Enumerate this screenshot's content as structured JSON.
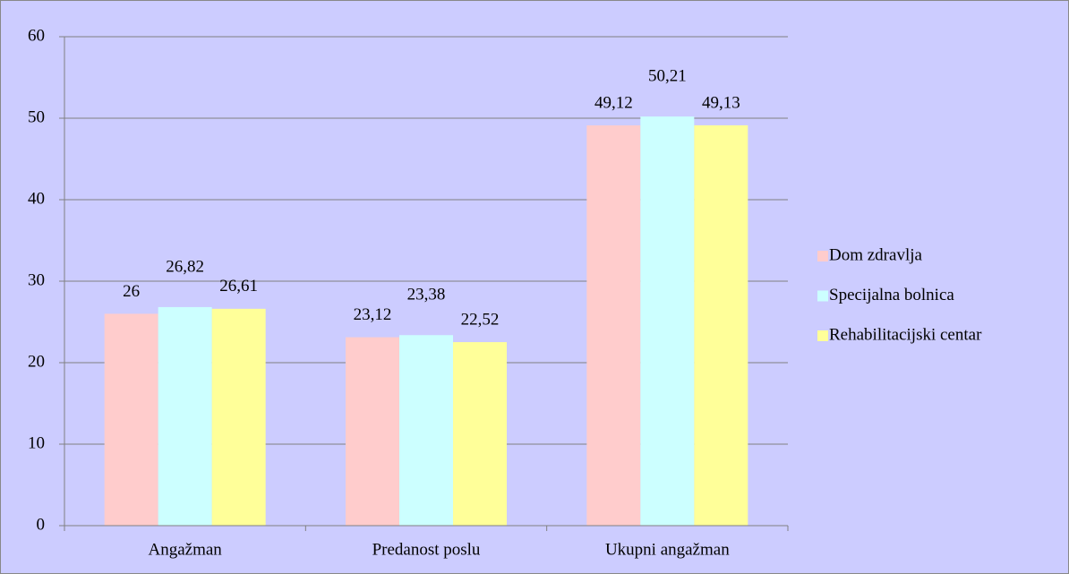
{
  "chart_data": {
    "type": "bar",
    "categories": [
      "Angažman",
      "Predanost poslu",
      "Ukupni angažman"
    ],
    "series": [
      {
        "name": "Dom zdravlja",
        "color": "#ffcccc",
        "values": [
          26,
          23.12,
          49.12
        ],
        "value_labels": [
          "26",
          "23,12",
          "49,12"
        ]
      },
      {
        "name": "Specijalna bolnica",
        "color": "#ccffff",
        "values": [
          26.82,
          23.38,
          50.21
        ],
        "value_labels": [
          "26,82",
          "23,38",
          "50,21"
        ]
      },
      {
        "name": "Rehabilitacijski centar",
        "color": "#ffff99",
        "values": [
          26.61,
          22.52,
          49.13
        ],
        "value_labels": [
          "26,61",
          "22,52",
          "49,13"
        ]
      }
    ],
    "ylim": [
      0,
      60
    ],
    "yticks": [
      0,
      10,
      20,
      30,
      40,
      50,
      60
    ],
    "grid": true,
    "legend": "right"
  }
}
